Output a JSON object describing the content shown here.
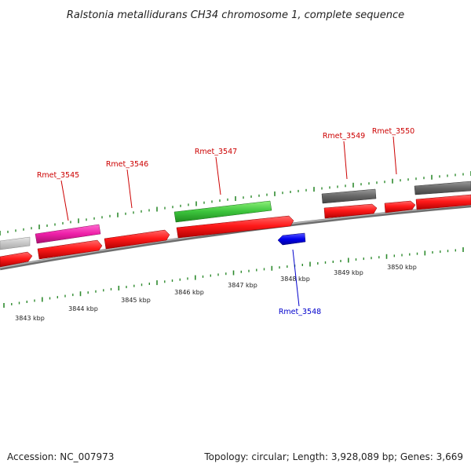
{
  "title": "Ralstonia metallidurans CH34 chromosome 1, complete sequence",
  "footer": {
    "accession": "Accession: NC_007973",
    "topology": "Topology: circular; Length: 3,928,089 bp; Genes: 3,669"
  },
  "colors": {
    "backbone": "#8c8c8c",
    "tick": "#2e8b2e",
    "cds": "#ff1a1a",
    "label_red": "#cc0000",
    "label_blue": "#0000cc"
  },
  "kbp_labels": [
    "3843 kbp",
    "3844 kbp",
    "3845 kbp",
    "3846 kbp",
    "3847 kbp",
    "3848 kbp",
    "3849 kbp",
    "3850 kbp"
  ],
  "gene_labels": [
    {
      "text": "Rmet_3545",
      "color": "#cc0000"
    },
    {
      "text": "Rmet_3546",
      "color": "#cc0000"
    },
    {
      "text": "Rmet_3547",
      "color": "#cc0000"
    },
    {
      "text": "Rmet_3549",
      "color": "#cc0000"
    },
    {
      "text": "Rmet_3550",
      "color": "#cc0000"
    },
    {
      "text": "Rmet_3548",
      "color": "#0000cc"
    }
  ]
}
